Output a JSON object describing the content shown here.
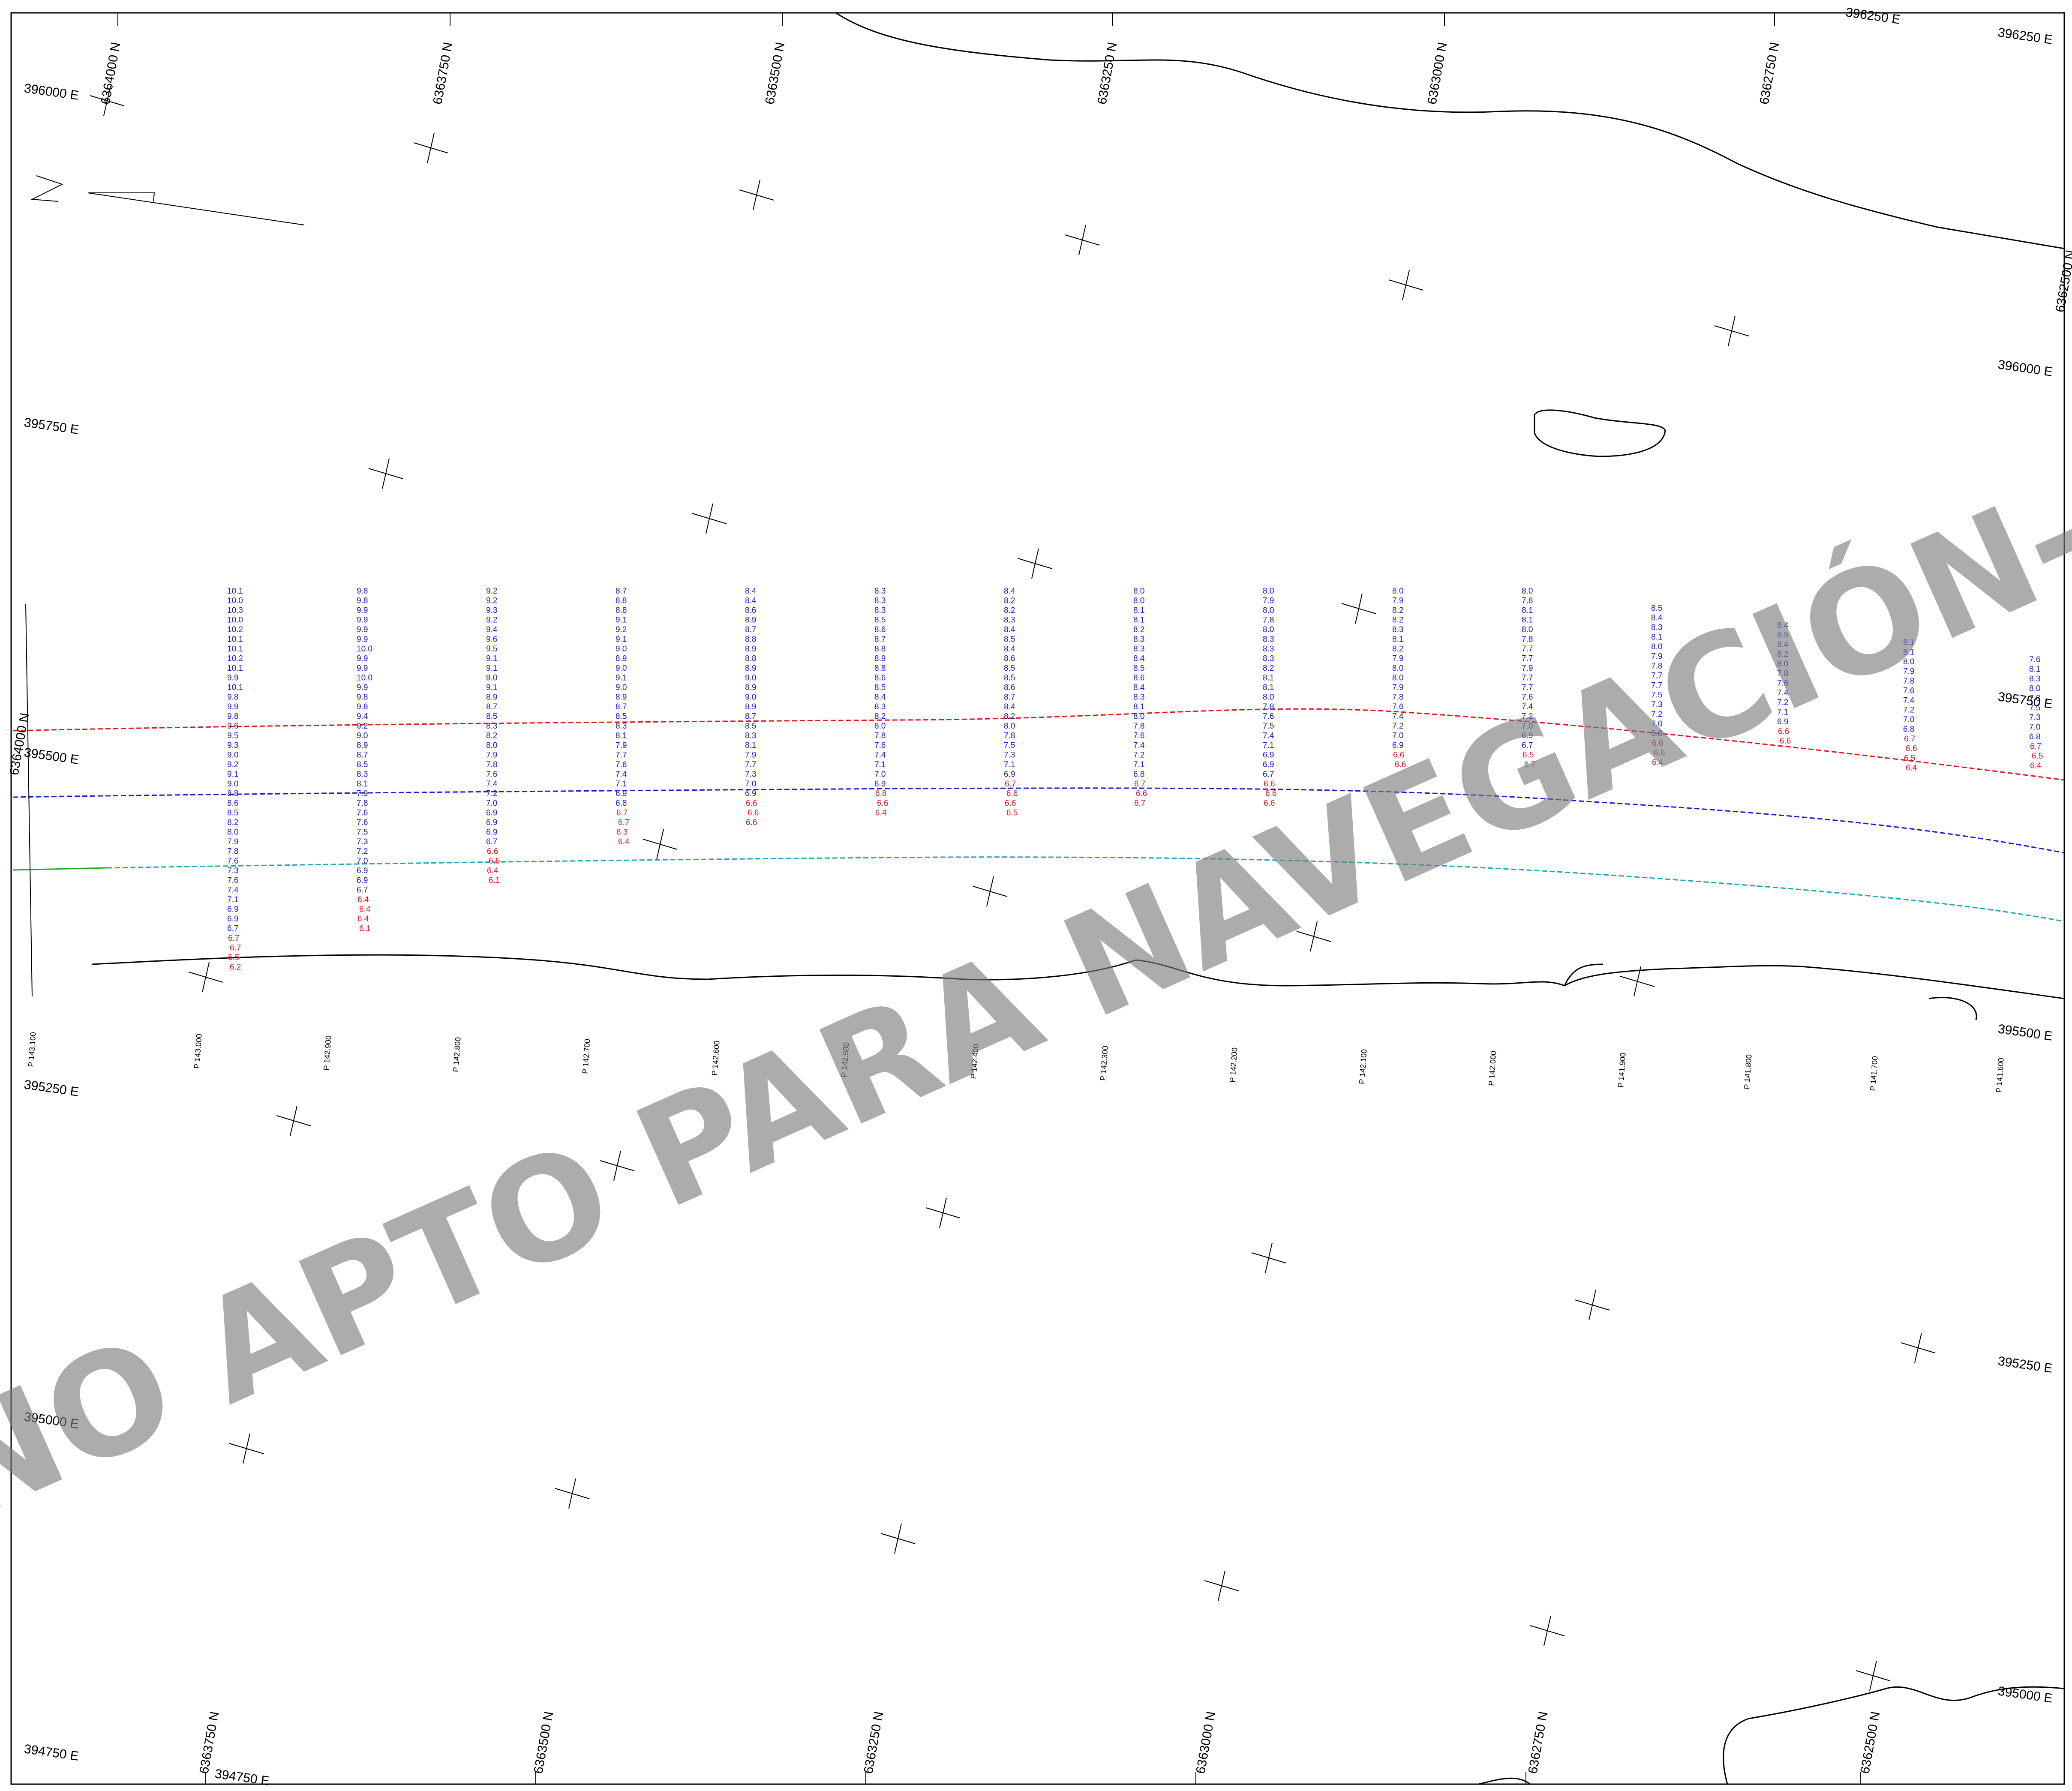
{
  "watermark": "-NO APTO PARA NAVEGACIÓN-",
  "colors": {
    "sounding_deep": "#1a1ad2",
    "sounding_shallow": "#e0141e",
    "coastline": "#000000",
    "grid": "#000000",
    "contour_red": "#e0141e",
    "contour_green": "#1fae1f",
    "contour_cyan": "#19a7b5"
  },
  "northing_labels_top": [
    "6364000 N",
    "6363750 N",
    "6363500 N",
    "6363250 N",
    "6363000 N",
    "6362750 N",
    "6362500 N"
  ],
  "northing_labels_bottom": [
    "6363750 N",
    "6363500 N",
    "6363250 N",
    "6363000 N",
    "6362750 N",
    "6362500 N"
  ],
  "northing_label_left": "6364000 N",
  "easting_labels_left": [
    "396000 E",
    "395750 E",
    "395500 E",
    "395250 E",
    "395000 E",
    "394750 E"
  ],
  "easting_labels_right": [
    "396250 E",
    "396000 E",
    "395750 E",
    "395500 E",
    "395250 E",
    "395000 E"
  ],
  "easting_label_top": "396250 E",
  "easting_label_bottom": "394750 E",
  "profiles": [
    {
      "label": "P 143.100",
      "top": [],
      "bottom": []
    },
    {
      "label": "P 143.000",
      "top": [
        "10.1",
        "10.0",
        "10.3",
        "10.0",
        "10.2",
        "10.1",
        "10.1",
        "10.2",
        "10.1",
        "9.9",
        "10.1",
        "9.8",
        "9.9",
        "9.8",
        "9.6",
        "9.5",
        "9.3",
        "9.0",
        "9.2",
        "9.1",
        "9.0",
        "8.8",
        "8.6",
        "8.5",
        "8.2",
        "8.0",
        "7.9",
        "7.8",
        "7.6",
        "7.3",
        "7.6",
        "7.4",
        "7.1",
        "6.9",
        "6.9",
        "6.7"
      ],
      "bottom": [
        "6.7",
        "6.7",
        "6.5",
        "6.2"
      ]
    },
    {
      "label": "P 142.900",
      "top": [
        "9.8",
        "9.8",
        "9.9",
        "9.9",
        "9.9",
        "9.9",
        "10.0",
        "9.9",
        "9.9",
        "10.0",
        "9.9",
        "9.8",
        "9.8",
        "9.4",
        "9.2",
        "9.0",
        "8.9",
        "8.7",
        "8.5",
        "8.3",
        "8.1",
        "7.9",
        "7.8",
        "7.6",
        "7.6",
        "7.5",
        "7.3",
        "7.2",
        "7.0",
        "6.9",
        "6.9",
        "6.7"
      ],
      "bottom": [
        "6.4",
        "6.4",
        "6.4",
        "6.1"
      ]
    },
    {
      "label": "P 142.800",
      "top": [
        "9.2",
        "9.2",
        "9.3",
        "9.2",
        "9.4",
        "9.6",
        "9.5",
        "9.1",
        "9.1",
        "9.0",
        "9.1",
        "8.9",
        "8.7",
        "8.5",
        "8.3",
        "8.2",
        "8.0",
        "7.9",
        "7.8",
        "7.6",
        "7.4",
        "7.2",
        "7.0",
        "6.9",
        "6.9",
        "6.9",
        "6.7"
      ],
      "bottom": [
        "6.6",
        "6.5",
        "6.4",
        "6.1"
      ]
    },
    {
      "label": "P 142.700",
      "top": [
        "8.7",
        "8.8",
        "8.8",
        "9.1",
        "9.2",
        "9.1",
        "9.0",
        "8.9",
        "9.0",
        "9.1",
        "9.0",
        "8.9",
        "8.7",
        "8.5",
        "8.3",
        "8.1",
        "7.9",
        "7.7",
        "7.6",
        "7.4",
        "7.1",
        "6.9",
        "6.8"
      ],
      "bottom": [
        "6.7",
        "6.7",
        "6.3",
        "6.4"
      ]
    },
    {
      "label": "P 142.600",
      "top": [
        "8.4",
        "8.4",
        "8.6",
        "8.9",
        "8.7",
        "8.8",
        "8.9",
        "8.8",
        "8.9",
        "9.0",
        "8.9",
        "9.0",
        "8.9",
        "8.7",
        "8.5",
        "8.3",
        "8.1",
        "7.9",
        "7.7",
        "7.3",
        "7.0",
        "6.9"
      ],
      "bottom": [
        "6.6",
        "6.6",
        "6.6"
      ]
    },
    {
      "label": "P 142.500",
      "top": [
        "8.3",
        "8.3",
        "8.3",
        "8.5",
        "8.6",
        "8.7",
        "8.8",
        "8.9",
        "8.8",
        "8.6",
        "8.5",
        "8.4",
        "8.3",
        "8.2",
        "8.0",
        "7.8",
        "7.6",
        "7.4",
        "7.1",
        "7.0",
        "6.9"
      ],
      "bottom": [
        "6.8",
        "6.6",
        "6.4"
      ]
    },
    {
      "label": "P 142.400",
      "top": [
        "8.4",
        "8.2",
        "8.2",
        "8.3",
        "8.4",
        "8.5",
        "8.4",
        "8.6",
        "8.5",
        "8.5",
        "8.6",
        "8.7",
        "8.4",
        "8.2",
        "8.0",
        "7.8",
        "7.5",
        "7.3",
        "7.1",
        "6.9"
      ],
      "bottom": [
        "6.7",
        "6.6",
        "6.6",
        "6.5"
      ]
    },
    {
      "label": "P 142.300",
      "top": [
        "8.0",
        "8.0",
        "8.1",
        "8.1",
        "8.2",
        "8.3",
        "8.3",
        "8.4",
        "8.5",
        "8.6",
        "8.4",
        "8.3",
        "8.1",
        "8.0",
        "7.8",
        "7.6",
        "7.4",
        "7.2",
        "7.1",
        "6.8"
      ],
      "bottom": [
        "6.7",
        "6.6",
        "6.7"
      ]
    },
    {
      "label": "P 142.200",
      "top": [
        "8.0",
        "7.9",
        "8.0",
        "7.8",
        "8.0",
        "8.3",
        "8.3",
        "8.3",
        "8.2",
        "8.1",
        "8.1",
        "8.0",
        "7.8",
        "7.6",
        "7.5",
        "7.4",
        "7.1",
        "6.9",
        "6.9",
        "6.7"
      ],
      "bottom": [
        "6.6",
        "6.6",
        "6.6"
      ]
    },
    {
      "label": "P 142.100",
      "top": [
        "8.0",
        "7.9",
        "8.2",
        "8.2",
        "8.3",
        "8.1",
        "8.2",
        "7.9",
        "8.0",
        "8.0",
        "7.9",
        "7.8",
        "7.6",
        "7.4",
        "7.2",
        "7.0",
        "6.9"
      ],
      "bottom": [
        "6.6",
        "6.6"
      ]
    },
    {
      "label": "P 142.000",
      "top": [
        "8.0",
        "7.8",
        "8.1",
        "8.1",
        "8.0",
        "7.8",
        "7.7",
        "7.7",
        "7.9",
        "7.7",
        "7.7",
        "7.6",
        "7.4",
        "7.2",
        "7.0",
        "6.9",
        "6.7"
      ],
      "bottom": [
        "6.5",
        "6.7"
      ]
    },
    {
      "label": "P 141.900",
      "top": [
        "8.5",
        "8.4",
        "8.3",
        "8.1",
        "8.0",
        "7.9",
        "7.8",
        "7.7",
        "7.7",
        "7.5",
        "7.3",
        "7.2",
        "7.0",
        "6.8"
      ],
      "bottom": [
        "6.6",
        "6.6",
        "6.4"
      ]
    },
    {
      "label": "P 141.800",
      "top": [
        "8.4",
        "8.5",
        "8.4",
        "8.2",
        "8.0",
        "7.8",
        "7.6",
        "7.4",
        "7.2",
        "7.1",
        "6.9"
      ],
      "bottom": [
        "6.6",
        "6.6"
      ]
    },
    {
      "label": "P 141.700",
      "top": [
        "8.1",
        "8.1",
        "8.0",
        "7.9",
        "7.8",
        "7.6",
        "7.4",
        "7.2",
        "7.0",
        "6.8"
      ],
      "bottom": [
        "6.7",
        "6.6",
        "6.5",
        "6.4"
      ]
    },
    {
      "label": "P 141.600",
      "top": [
        "7.6",
        "8.1",
        "8.3",
        "8.0",
        "7.8",
        "7.5",
        "7.3",
        "7.0",
        "6.8"
      ],
      "bottom": [
        "6.7",
        "6.5",
        "6.4"
      ]
    }
  ]
}
